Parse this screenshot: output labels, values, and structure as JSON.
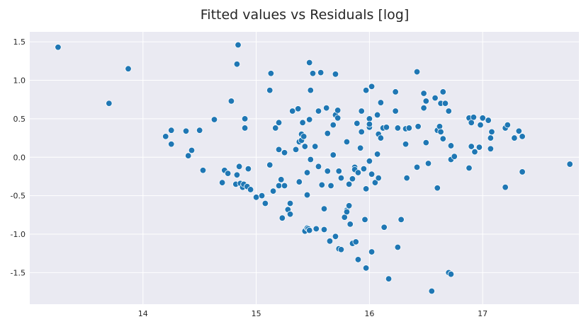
{
  "chart_data": {
    "type": "scatter",
    "title": "Fitted values vs Residuals [log]",
    "xlabel": "",
    "ylabel": "",
    "xlim": [
      13.0,
      17.85
    ],
    "ylim": [
      -1.91,
      1.63
    ],
    "xticks": [
      14,
      15,
      16,
      17
    ],
    "yticks": [
      -1.5,
      -1.0,
      -0.5,
      0.0,
      0.5,
      1.0,
      1.5
    ],
    "grid": true,
    "colors": {
      "background": "#EAEAF2",
      "grid": "#FFFFFF",
      "marker": "#1F77B4",
      "marker_edge": "#FFFFFF",
      "text": "#262626"
    },
    "points": [
      [
        13.25,
        1.43
      ],
      [
        13.7,
        0.7
      ],
      [
        13.87,
        1.15
      ],
      [
        14.2,
        0.27
      ],
      [
        14.25,
        0.35
      ],
      [
        14.25,
        0.17
      ],
      [
        14.38,
        0.34
      ],
      [
        14.4,
        0.02
      ],
      [
        14.43,
        0.09
      ],
      [
        14.5,
        0.35
      ],
      [
        14.53,
        -0.17
      ],
      [
        14.63,
        0.49
      ],
      [
        14.7,
        -0.33
      ],
      [
        14.72,
        -0.17
      ],
      [
        14.75,
        -0.21
      ],
      [
        14.78,
        0.73
      ],
      [
        14.82,
        -0.35
      ],
      [
        14.83,
        -0.23
      ],
      [
        14.83,
        1.21
      ],
      [
        14.84,
        1.46
      ],
      [
        14.85,
        -0.12
      ],
      [
        14.86,
        -0.34
      ],
      [
        14.88,
        -0.39
      ],
      [
        14.89,
        -0.35
      ],
      [
        14.9,
        0.5
      ],
      [
        14.9,
        0.38
      ],
      [
        14.92,
        -0.38
      ],
      [
        14.93,
        -0.15
      ],
      [
        14.95,
        -0.42
      ],
      [
        15.0,
        -0.52
      ],
      [
        15.05,
        -0.5
      ],
      [
        15.08,
        -0.6
      ],
      [
        15.12,
        -0.1
      ],
      [
        15.12,
        0.87
      ],
      [
        15.13,
        1.09
      ],
      [
        15.15,
        -0.44
      ],
      [
        15.17,
        0.38
      ],
      [
        15.2,
        0.45
      ],
      [
        15.2,
        -0.37
      ],
      [
        15.2,
        0.1
      ],
      [
        15.22,
        -0.29
      ],
      [
        15.23,
        -0.79
      ],
      [
        15.25,
        -0.37
      ],
      [
        15.25,
        0.06
      ],
      [
        15.28,
        -0.68
      ],
      [
        15.3,
        -0.74
      ],
      [
        15.3,
        -0.6
      ],
      [
        15.32,
        0.6
      ],
      [
        15.35,
        0.1
      ],
      [
        15.37,
        0.63
      ],
      [
        15.38,
        0.2
      ],
      [
        15.38,
        -0.32
      ],
      [
        15.4,
        0.3
      ],
      [
        15.4,
        0.22
      ],
      [
        15.41,
        0.45
      ],
      [
        15.42,
        0.27
      ],
      [
        15.43,
        -0.96
      ],
      [
        15.43,
        0.14
      ],
      [
        15.45,
        -0.92
      ],
      [
        15.45,
        -0.2
      ],
      [
        15.45,
        -0.49
      ],
      [
        15.46,
        -0.93
      ],
      [
        15.47,
        -0.95
      ],
      [
        15.47,
        0.49
      ],
      [
        15.47,
        1.23
      ],
      [
        15.48,
        -0.03
      ],
      [
        15.48,
        0.87
      ],
      [
        15.5,
        1.09
      ],
      [
        15.52,
        0.14
      ],
      [
        15.53,
        -0.93
      ],
      [
        15.55,
        -0.12
      ],
      [
        15.55,
        0.6
      ],
      [
        15.57,
        1.1
      ],
      [
        15.58,
        -0.36
      ],
      [
        15.6,
        -0.94
      ],
      [
        15.6,
        -0.67
      ],
      [
        15.62,
        0.64
      ],
      [
        15.63,
        -0.18
      ],
      [
        15.63,
        0.31
      ],
      [
        15.65,
        -1.09
      ],
      [
        15.66,
        -0.37
      ],
      [
        15.68,
        0.03
      ],
      [
        15.68,
        0.42
      ],
      [
        15.7,
        -1.03
      ],
      [
        15.7,
        1.08
      ],
      [
        15.7,
        0.55
      ],
      [
        15.72,
        0.61
      ],
      [
        15.72,
        0.51
      ],
      [
        15.73,
        -0.18
      ],
      [
        15.73,
        -1.19
      ],
      [
        15.75,
        -0.27
      ],
      [
        15.75,
        -1.2
      ],
      [
        15.78,
        -0.78
      ],
      [
        15.8,
        -0.69
      ],
      [
        15.8,
        0.2
      ],
      [
        15.8,
        -0.71
      ],
      [
        15.82,
        -0.35
      ],
      [
        15.82,
        -0.63
      ],
      [
        15.83,
        -0.87
      ],
      [
        15.85,
        -1.12
      ],
      [
        15.85,
        -0.28
      ],
      [
        15.87,
        -0.13
      ],
      [
        15.87,
        -0.16
      ],
      [
        15.88,
        -1.1
      ],
      [
        15.89,
        0.44
      ],
      [
        15.9,
        -0.2
      ],
      [
        15.9,
        -1.33
      ],
      [
        15.92,
        0.12
      ],
      [
        15.93,
        0.33
      ],
      [
        15.93,
        0.6
      ],
      [
        15.95,
        -0.15
      ],
      [
        15.96,
        -0.81
      ],
      [
        15.97,
        -1.44
      ],
      [
        15.97,
        -0.41
      ],
      [
        15.97,
        0.87
      ],
      [
        16.0,
        0.39
      ],
      [
        16.0,
        0.5
      ],
      [
        16.0,
        0.43
      ],
      [
        16.0,
        -0.05
      ],
      [
        16.02,
        -0.22
      ],
      [
        16.02,
        0.92
      ],
      [
        16.02,
        -1.23
      ],
      [
        16.05,
        -0.33
      ],
      [
        16.07,
        0.55
      ],
      [
        16.07,
        0.04
      ],
      [
        16.08,
        -0.27
      ],
      [
        16.08,
        0.3
      ],
      [
        16.1,
        0.25
      ],
      [
        16.1,
        0.71
      ],
      [
        16.12,
        0.38
      ],
      [
        16.13,
        -0.91
      ],
      [
        16.15,
        0.39
      ],
      [
        16.17,
        -1.58
      ],
      [
        16.23,
        0.85
      ],
      [
        16.23,
        0.6
      ],
      [
        16.25,
        -1.17
      ],
      [
        16.25,
        0.38
      ],
      [
        16.28,
        -0.81
      ],
      [
        16.32,
        0.37
      ],
      [
        16.32,
        0.17
      ],
      [
        16.33,
        -0.27
      ],
      [
        16.35,
        0.38
      ],
      [
        16.42,
        -0.13
      ],
      [
        16.42,
        1.11
      ],
      [
        16.43,
        0.4
      ],
      [
        16.48,
        0.64
      ],
      [
        16.48,
        0.83
      ],
      [
        16.5,
        0.19
      ],
      [
        16.5,
        0.73
      ],
      [
        16.52,
        -0.08
      ],
      [
        16.55,
        -1.74
      ],
      [
        16.58,
        0.77
      ],
      [
        16.6,
        0.35
      ],
      [
        16.6,
        -0.4
      ],
      [
        16.62,
        0.4
      ],
      [
        16.63,
        0.7
      ],
      [
        16.63,
        0.33
      ],
      [
        16.65,
        0.24
      ],
      [
        16.65,
        0.85
      ],
      [
        16.67,
        0.7
      ],
      [
        16.7,
        0.6
      ],
      [
        16.7,
        -1.5
      ],
      [
        16.72,
        0.15
      ],
      [
        16.72,
        -1.52
      ],
      [
        16.72,
        -0.03
      ],
      [
        16.75,
        0.01
      ],
      [
        16.88,
        0.51
      ],
      [
        16.88,
        -0.14
      ],
      [
        16.9,
        0.14
      ],
      [
        16.9,
        0.45
      ],
      [
        16.92,
        0.52
      ],
      [
        16.93,
        0.07
      ],
      [
        16.97,
        0.13
      ],
      [
        16.98,
        0.42
      ],
      [
        17.0,
        0.51
      ],
      [
        17.05,
        0.48
      ],
      [
        17.07,
        0.11
      ],
      [
        17.07,
        0.25
      ],
      [
        17.08,
        0.33
      ],
      [
        17.2,
        -0.39
      ],
      [
        17.2,
        0.38
      ],
      [
        17.22,
        0.42
      ],
      [
        17.28,
        0.25
      ],
      [
        17.32,
        0.34
      ],
      [
        17.35,
        0.27
      ],
      [
        17.35,
        -0.19
      ],
      [
        17.77,
        -0.09
      ]
    ]
  }
}
